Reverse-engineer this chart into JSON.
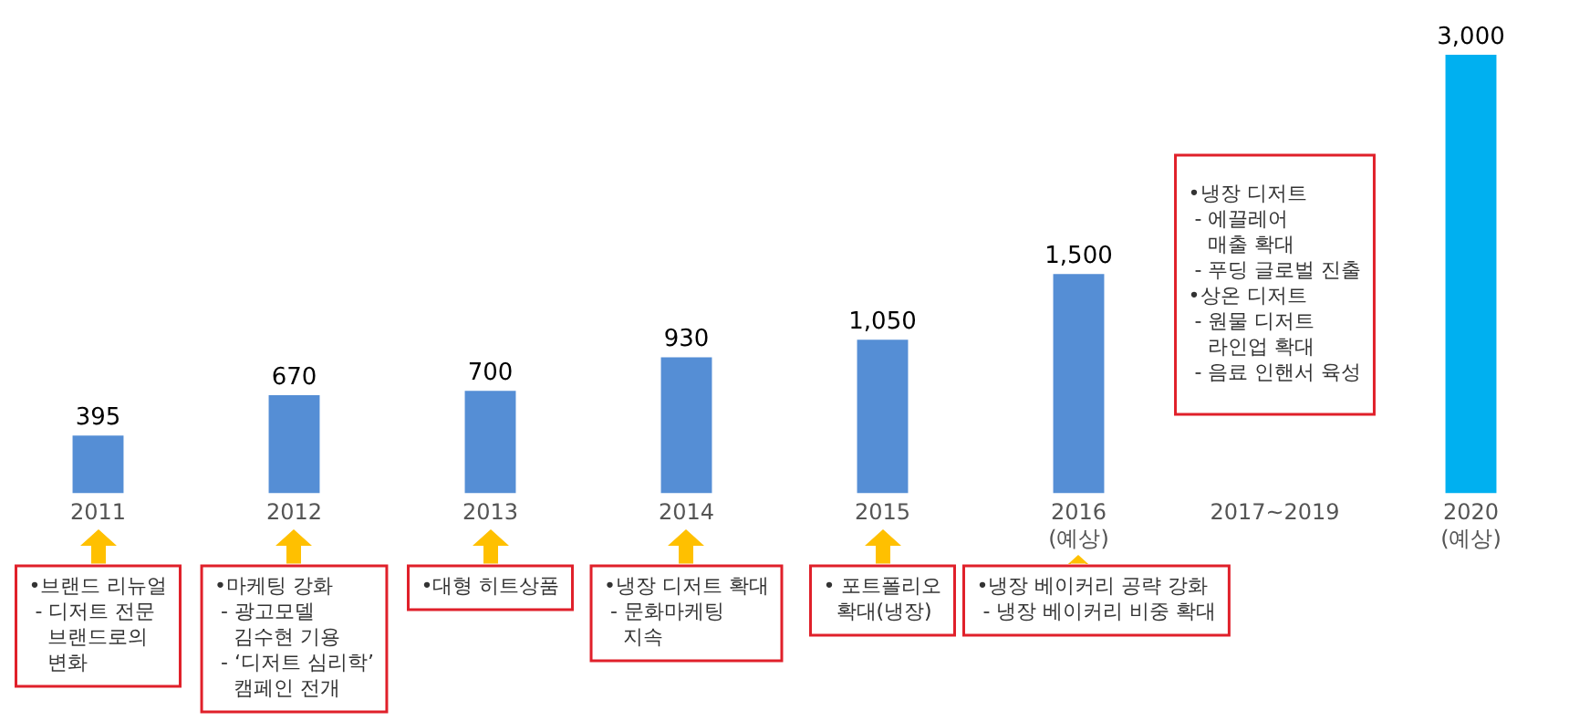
{
  "chart_data": {
    "type": "bar",
    "categories": [
      "2011",
      "2012",
      "2013",
      "2014",
      "2015",
      "2016 (예상)",
      "2017~2019",
      "2020 (예상)"
    ],
    "values": [
      395,
      670,
      700,
      930,
      1050,
      1500,
      null,
      3000
    ],
    "value_labels": [
      "395",
      "670",
      "700",
      "930",
      "1,050",
      "1,500",
      null,
      "3,000"
    ],
    "colors": [
      "#558ed5",
      "#558ed5",
      "#558ed5",
      "#558ed5",
      "#558ed5",
      "#558ed5",
      null,
      "#00b0f0"
    ],
    "grid": false,
    "legend": false,
    "annotations": [
      "•브랜드 리뉴얼\n - 디저트 전문\n   브랜드로의\n   변화",
      "•마케팅 강화\n - 광고모델\n   김수현 기용\n - ‘디저트 심리학’\n   캠페인 전개",
      "•대형 히트상품",
      "•냉장 디저트 확대\n - 문화마케팅\n   지속",
      "• 포트폴리오\n  확대(냉장)",
      "•냉장 베이커리 공략 강화\n - 냉장 베이커리 비중 확대",
      "•냉장 디저트\n - 에끌레어\n   매출 확대\n - 푸딩 글로벌 진출\n•상온 디저트\n - 원물 디저트\n   라인업 확대\n - 음료 인핸서 육성"
    ]
  }
}
